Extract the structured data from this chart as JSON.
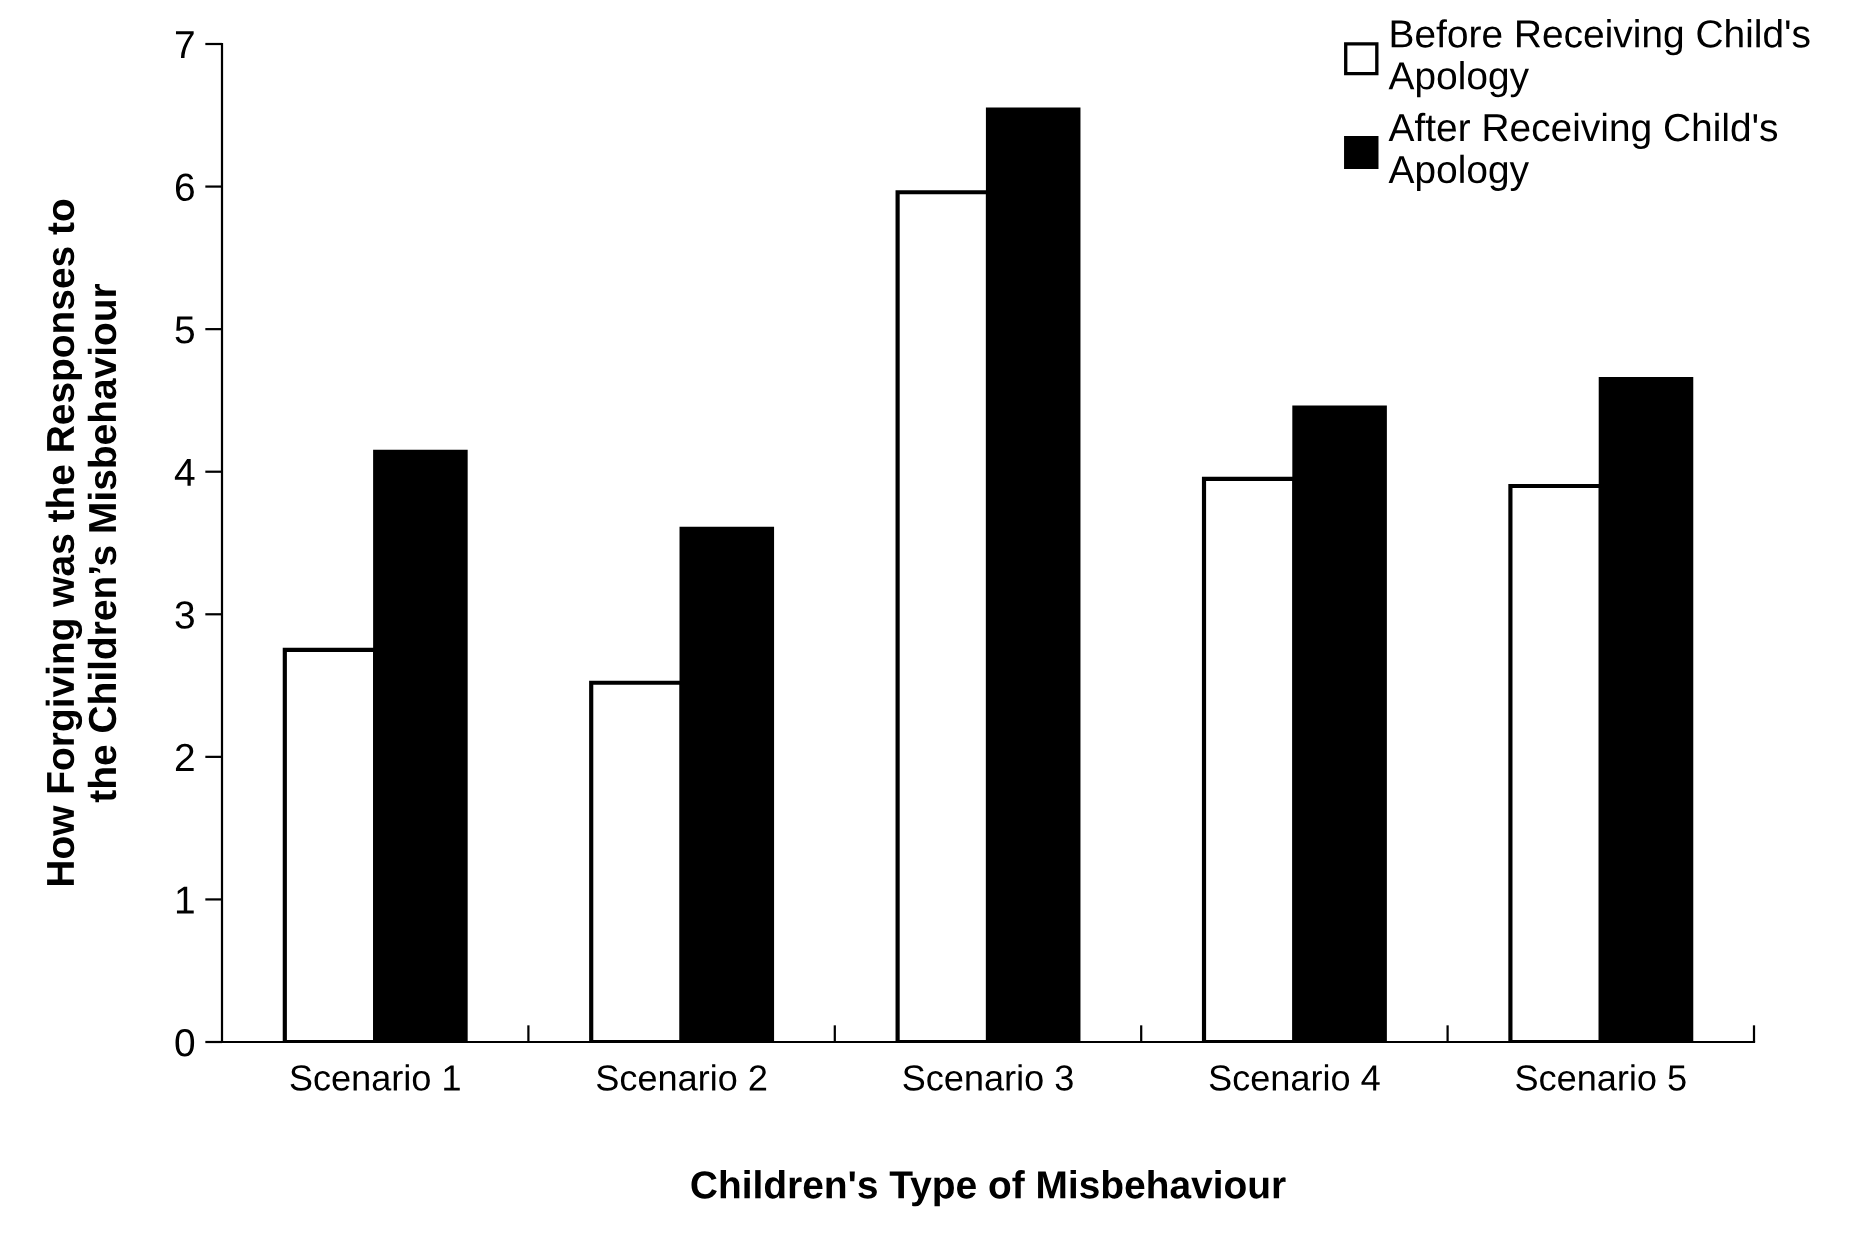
{
  "chart_data": {
    "type": "bar",
    "xlabel": "Children's Type of Misbehaviour",
    "ylabel": "How Forgiving was the Responses to\nthe Children’s Misbehaviour",
    "categories": [
      "Scenario 1",
      "Scenario 2",
      "Scenario 3",
      "Scenario 4",
      "Scenario 5"
    ],
    "series": [
      {
        "name": "Before Receiving Child's\nApology",
        "color": "#ffffff",
        "values": [
          2.75,
          2.52,
          5.96,
          3.95,
          3.9
        ]
      },
      {
        "name": "After Receiving Child's\nApology",
        "color": "#000000",
        "values": [
          4.14,
          3.6,
          6.54,
          4.45,
          4.65
        ]
      }
    ],
    "ylim": [
      0,
      7
    ],
    "yticks": [
      0,
      1,
      2,
      3,
      4,
      5,
      6,
      7
    ],
    "grid": false,
    "legend": "top right"
  }
}
